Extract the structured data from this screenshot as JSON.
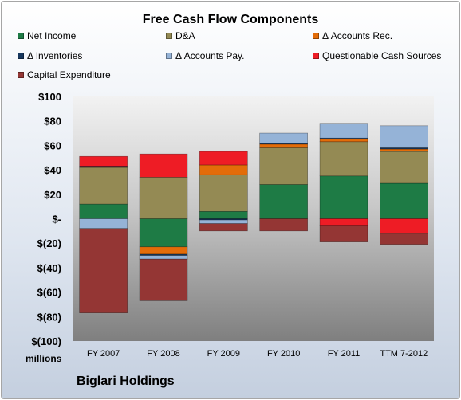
{
  "chart_data": {
    "type": "bar",
    "stacked": true,
    "title": "Free Cash Flow Components",
    "categories": [
      "FY 2007",
      "FY 2008",
      "FY 2009",
      "FY 2010",
      "FY 2011",
      "TTM 7-2012"
    ],
    "series": [
      {
        "name": "Net Income",
        "color": "#1e7b45",
        "values": [
          12,
          -23,
          6,
          28,
          35,
          29
        ]
      },
      {
        "name": "D&A",
        "color": "#948a54",
        "values": [
          30,
          34,
          30,
          30,
          28,
          26
        ]
      },
      {
        "name": "Δ Accounts Rec.",
        "color": "#e36c09",
        "values": [
          0,
          -6,
          8,
          3,
          2,
          2
        ]
      },
      {
        "name": "Δ Inventories",
        "color": "#17375e",
        "values": [
          1,
          -1,
          -1,
          1,
          1,
          1
        ]
      },
      {
        "name": "Δ Accounts Pay.",
        "color": "#95b3d7",
        "values": [
          -8,
          -3,
          -3,
          8,
          12,
          18
        ]
      },
      {
        "name": "Questionable Cash Sources",
        "color": "#ee1c25",
        "values": [
          8,
          19,
          11,
          0,
          -6,
          -12
        ]
      },
      {
        "name": "Capital Expenditure",
        "color": "#943634",
        "values": [
          -69,
          -34,
          -6,
          -10,
          -13,
          -9
        ]
      }
    ],
    "yticks": [
      "$100",
      "$80",
      "$60",
      "$40",
      "$20",
      "$-",
      "$(20)",
      "$(40)",
      "$(60)",
      "$(80)",
      "$(100)"
    ],
    "ylim": [
      -100,
      100
    ],
    "ylabel": "millions",
    "legend_position": "top",
    "grid": false
  },
  "footer": {
    "company": "Biglari Holdings"
  }
}
